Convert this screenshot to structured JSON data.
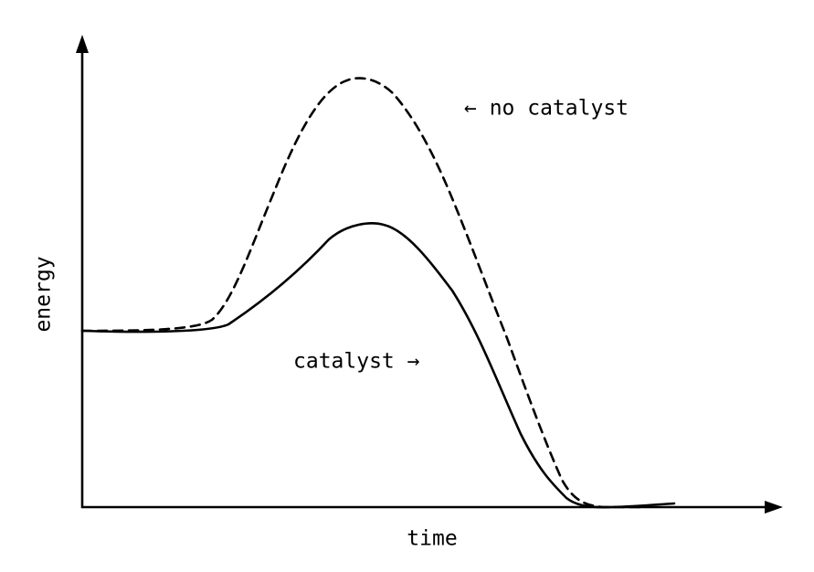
{
  "axes": {
    "y_label": "energy",
    "x_label": "time"
  },
  "annotations": {
    "no_catalyst": "← no catalyst",
    "catalyst": "catalyst →"
  }
}
